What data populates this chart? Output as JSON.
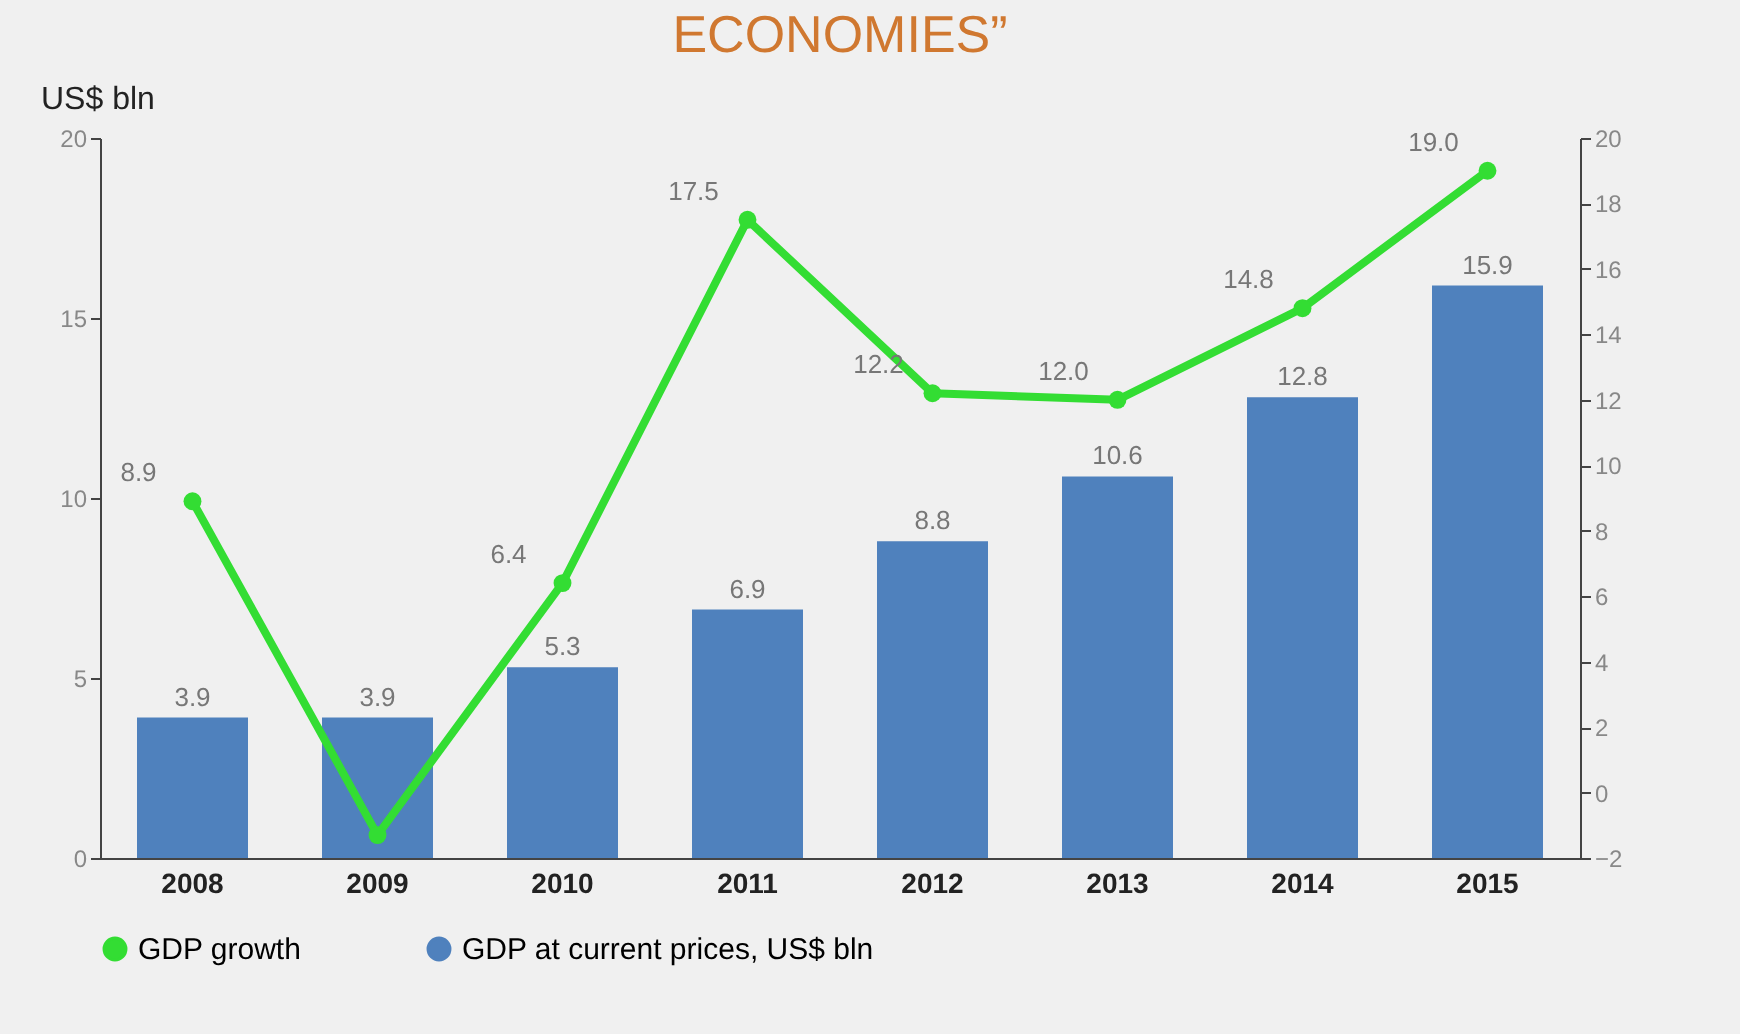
{
  "chart_data": {
    "type": "bar",
    "title": "ECONOMIES”",
    "ylabel": "US$ bln",
    "categories": [
      "2008",
      "2009",
      "2010",
      "2011",
      "2012",
      "2013",
      "2014",
      "2015"
    ],
    "series": [
      {
        "name": "GDP growth",
        "type": "line",
        "axis": "y2",
        "color": "#33dd33",
        "values": [
          8.9,
          -1.3,
          6.4,
          17.5,
          12.2,
          12.0,
          14.8,
          19.0
        ],
        "value_labels": [
          "8.9",
          null,
          "6.4",
          "17.5",
          "12.2",
          "12.0",
          "14.8",
          "19.0"
        ]
      },
      {
        "name": "GDP at current prices, US$ bln",
        "type": "bar",
        "color": "#4f81bd",
        "values": [
          3.9,
          3.9,
          5.3,
          6.9,
          8.8,
          10.6,
          12.8,
          15.9
        ],
        "value_labels": [
          "3.9",
          "3.9",
          "5.3",
          "6.9",
          "8.8",
          "10.6",
          "12.8",
          "15.9"
        ]
      }
    ],
    "ylim": [
      0,
      20
    ],
    "yticks": [
      0,
      5,
      10,
      15,
      20
    ],
    "y2lim": [
      -2,
      20
    ],
    "y2ticks": [
      -2,
      0,
      2,
      4,
      6,
      8,
      10,
      12,
      14,
      16,
      18,
      20
    ],
    "marker": "circle",
    "grid": false,
    "legend": "bottom"
  }
}
